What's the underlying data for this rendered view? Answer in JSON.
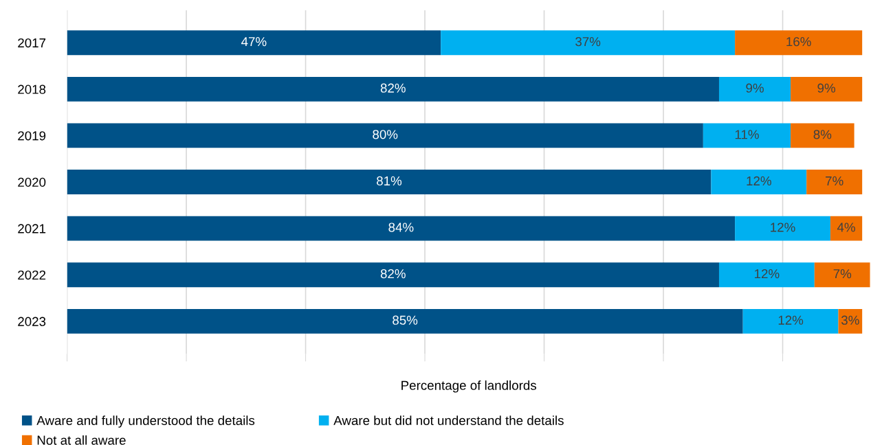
{
  "chart_data": {
    "type": "bar",
    "orientation": "horizontal",
    "stacked": true,
    "categories": [
      "2017",
      "2018",
      "2019",
      "2020",
      "2021",
      "2022",
      "2023"
    ],
    "series": [
      {
        "name": "Aware and fully understood the details",
        "color": "#005288",
        "values": [
          47,
          82,
          80,
          81,
          84,
          82,
          85
        ],
        "value_labels": [
          "47%",
          "82%",
          "80%",
          "81%",
          "84%",
          "82%",
          "85%"
        ]
      },
      {
        "name": "Aware but did not understand the details",
        "color": "#00b0f0",
        "values": [
          37,
          9,
          11,
          12,
          12,
          12,
          12
        ],
        "value_labels": [
          "37%",
          "9%",
          "11%",
          "12%",
          "12%",
          "12%",
          "12%"
        ]
      },
      {
        "name": "Not at all aware",
        "color": "#f07000",
        "values": [
          16,
          9,
          8,
          7,
          4,
          7,
          3
        ],
        "value_labels": [
          "16%",
          "9%",
          "8%",
          "7%",
          "4%",
          "7%",
          "3%"
        ]
      }
    ],
    "xlabel": "Percentage of landlords",
    "tick_labels": "y",
    "grid": "x",
    "legend": "bottom"
  }
}
